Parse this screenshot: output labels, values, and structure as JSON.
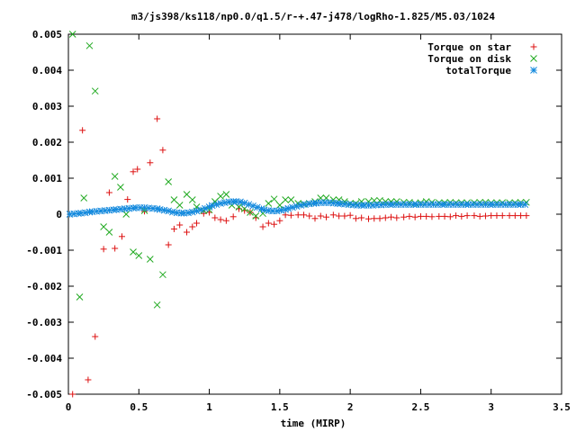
{
  "chart_data": {
    "type": "scatter",
    "title": "m3/js398/ks118/np0.0/q1.5/r-+.47-j478/logRho-1.825/M5.03/1024",
    "xlabel": "time (MIRP)",
    "ylabel": "",
    "xlim": [
      0,
      3.5
    ],
    "ylim": [
      -0.005,
      0.005
    ],
    "x_ticks": [
      "0",
      "0.5",
      "1",
      "1.5",
      "2",
      "2.5",
      "3",
      "3.5"
    ],
    "y_ticks": [
      "-0.005",
      "-0.004",
      "-0.003",
      "-0.002",
      "-0.001",
      "0",
      "0.001",
      "0.002",
      "0.003",
      "0.004",
      "0.005"
    ],
    "grid": false,
    "legend_position": "top-right",
    "colors": {
      "star": "#dd1111",
      "disk": "#22aa22",
      "total": "#1188dd",
      "axis": "#000000"
    },
    "series": [
      {
        "name": "Torque on star",
        "marker": "plus",
        "x": [
          0.03,
          0.1,
          0.14,
          0.19,
          0.25,
          0.29,
          0.33,
          0.38,
          0.42,
          0.46,
          0.49,
          0.54,
          0.58,
          0.63,
          0.67,
          0.71,
          0.75,
          0.79,
          0.84,
          0.88,
          0.91,
          0.96,
          1.0,
          1.04,
          1.08,
          1.12,
          1.17,
          1.21,
          1.25,
          1.29,
          1.33,
          1.38,
          1.42,
          1.46,
          1.5,
          1.54,
          1.58,
          1.63,
          1.67,
          1.71,
          1.75,
          1.79,
          1.83,
          1.88,
          1.92,
          1.96,
          2.0,
          2.04,
          2.08,
          2.13,
          2.17,
          2.21,
          2.25,
          2.29,
          2.33,
          2.38,
          2.42,
          2.46,
          2.5,
          2.54,
          2.58,
          2.63,
          2.67,
          2.71,
          2.75,
          2.79,
          2.83,
          2.88,
          2.92,
          2.96,
          3.0,
          3.04,
          3.08,
          3.13,
          3.17,
          3.21,
          3.25
        ],
        "y": [
          -0.005,
          0.00233,
          -0.0046,
          -0.0034,
          -0.00097,
          0.0006,
          -0.00095,
          -0.00062,
          0.00041,
          0.00118,
          0.00125,
          8e-05,
          0.00143,
          0.00265,
          0.00178,
          -0.00085,
          -0.00041,
          -0.0003,
          -0.0005,
          -0.00035,
          -0.00025,
          2e-05,
          5e-05,
          -0.0001,
          -0.00015,
          -0.00018,
          -7e-05,
          0.00015,
          0.0001,
          5e-05,
          -0.0001,
          -0.00035,
          -0.00025,
          -0.00028,
          -0.00018,
          -2e-05,
          -3e-05,
          -2e-05,
          -2e-05,
          -5e-05,
          -0.00012,
          -5e-05,
          -8e-05,
          -2e-05,
          -5e-05,
          -5e-05,
          -3e-05,
          -0.00012,
          -0.0001,
          -0.00013,
          -0.00012,
          -0.00012,
          -0.0001,
          -8e-05,
          -0.0001,
          -8e-05,
          -6e-05,
          -8e-05,
          -6e-05,
          -6e-05,
          -7e-05,
          -6e-05,
          -6e-05,
          -7e-05,
          -4e-05,
          -6e-05,
          -4e-05,
          -4e-05,
          -6e-05,
          -5e-05,
          -4e-05,
          -4e-05,
          -4e-05,
          -4e-05,
          -4e-05,
          -4e-05,
          -4e-05
        ]
      },
      {
        "name": "Torque on disk",
        "marker": "cross",
        "x": [
          0.03,
          0.08,
          0.11,
          0.15,
          0.19,
          0.25,
          0.29,
          0.33,
          0.37,
          0.41,
          0.46,
          0.5,
          0.54,
          0.58,
          0.63,
          0.67,
          0.71,
          0.75,
          0.79,
          0.84,
          0.88,
          0.91,
          0.96,
          1.0,
          1.04,
          1.08,
          1.12,
          1.16,
          1.21,
          1.25,
          1.29,
          1.33,
          1.38,
          1.42,
          1.46,
          1.5,
          1.54,
          1.58,
          1.63,
          1.67,
          1.71,
          1.75,
          1.79,
          1.83,
          1.88,
          1.92,
          1.96,
          2.0,
          2.04,
          2.08,
          2.13,
          2.17,
          2.21,
          2.25,
          2.29,
          2.33,
          2.38,
          2.42,
          2.46,
          2.5,
          2.54,
          2.58,
          2.63,
          2.67,
          2.71,
          2.75,
          2.79,
          2.83,
          2.88,
          2.92,
          2.96,
          3.0,
          3.04,
          3.08,
          3.13,
          3.17,
          3.21,
          3.25
        ],
        "y": [
          0.005,
          -0.0023,
          0.00045,
          0.00468,
          0.00342,
          -0.00035,
          -0.0005,
          0.00105,
          0.00075,
          0.0,
          -0.00105,
          -0.00115,
          0.0001,
          -0.00125,
          -0.00252,
          -0.00168,
          0.0009,
          0.0004,
          0.00025,
          0.00055,
          0.0004,
          0.0002,
          0.0001,
          0.00012,
          0.00035,
          0.0005,
          0.00055,
          0.00025,
          0.0002,
          0.00015,
          5e-05,
          -5e-05,
          2e-05,
          0.0003,
          0.00042,
          0.00025,
          0.0004,
          0.0004,
          0.0003,
          0.00028,
          0.0003,
          0.00035,
          0.00045,
          0.00045,
          0.0004,
          0.0004,
          0.00035,
          0.0003,
          0.0003,
          0.00035,
          0.00035,
          0.00038,
          0.00038,
          0.00035,
          0.00035,
          0.00035,
          0.00033,
          0.00033,
          0.0003,
          0.00032,
          0.00035,
          0.00033,
          0.00032,
          0.00032,
          0.00033,
          0.00032,
          0.00032,
          0.00032,
          0.00032,
          0.00033,
          0.00033,
          0.00032,
          0.00032,
          0.00032,
          0.00032,
          0.00032,
          0.00033,
          0.00033
        ]
      },
      {
        "name": "totalTorque",
        "marker": "star",
        "x": [
          0.01,
          0.04,
          0.07,
          0.09,
          0.12,
          0.15,
          0.17,
          0.2,
          0.23,
          0.26,
          0.29,
          0.32,
          0.34,
          0.37,
          0.4,
          0.43,
          0.46,
          0.48,
          0.51,
          0.54,
          0.57,
          0.6,
          0.63,
          0.65,
          0.68,
          0.71,
          0.74,
          0.77,
          0.8,
          0.82,
          0.85,
          0.88,
          0.91,
          0.94,
          0.97,
          1.0,
          1.02,
          1.05,
          1.08,
          1.11,
          1.14,
          1.17,
          1.19,
          1.22,
          1.25,
          1.28,
          1.31,
          1.34,
          1.37,
          1.39,
          1.42,
          1.45,
          1.48,
          1.51,
          1.54,
          1.56,
          1.59,
          1.62,
          1.65,
          1.68,
          1.71,
          1.74,
          1.76,
          1.79,
          1.82,
          1.85,
          1.88,
          1.91,
          1.93,
          1.96,
          1.99,
          2.02,
          2.05,
          2.08,
          2.1,
          2.13,
          2.16,
          2.19,
          2.22,
          2.25,
          2.28,
          2.3,
          2.33,
          2.36,
          2.39,
          2.42,
          2.45,
          2.47,
          2.5,
          2.53,
          2.56,
          2.59,
          2.62,
          2.65,
          2.67,
          2.7,
          2.73,
          2.76,
          2.79,
          2.82,
          2.84,
          2.87,
          2.9,
          2.93,
          2.96,
          2.99,
          3.01,
          3.04,
          3.07,
          3.1,
          3.13,
          3.16,
          3.19,
          3.21,
          3.24
        ],
        "y": [
          0.0,
          1e-05,
          2e-05,
          3e-05,
          4e-05,
          6e-05,
          7e-05,
          8e-05,
          9e-05,
          0.0001,
          0.00011,
          0.00012,
          0.00013,
          0.00014,
          0.00015,
          0.00016,
          0.00017,
          0.00018,
          0.00018,
          0.00018,
          0.00017,
          0.00016,
          0.00015,
          0.00013,
          0.00011,
          9e-05,
          6e-05,
          4e-05,
          3e-05,
          3e-05,
          4e-05,
          6e-05,
          9e-05,
          0.00012,
          0.00016,
          0.0002,
          0.00024,
          0.00027,
          0.0003,
          0.00032,
          0.00034,
          0.00035,
          0.00035,
          0.00034,
          0.00031,
          0.00027,
          0.00023,
          0.00019,
          0.00015,
          0.00012,
          0.0001,
          9e-05,
          9e-05,
          0.00011,
          0.00013,
          0.00016,
          0.00019,
          0.00022,
          0.00025,
          0.00027,
          0.00029,
          0.0003,
          0.00031,
          0.00032,
          0.00032,
          0.00032,
          0.00031,
          0.0003,
          0.00029,
          0.00028,
          0.00027,
          0.00026,
          0.00025,
          0.00025,
          0.00025,
          0.00025,
          0.00025,
          0.00026,
          0.00026,
          0.00027,
          0.00027,
          0.00027,
          0.00027,
          0.00027,
          0.00027,
          0.00027,
          0.00027,
          0.00027,
          0.00027,
          0.00027,
          0.00027,
          0.00027,
          0.00027,
          0.00027,
          0.00027,
          0.00027,
          0.00027,
          0.00027,
          0.00027,
          0.00027,
          0.00027,
          0.00027,
          0.00027,
          0.00027,
          0.00027,
          0.00027,
          0.00027,
          0.00027,
          0.00027,
          0.00027,
          0.00027,
          0.00027,
          0.00027,
          0.00027,
          0.00027
        ]
      }
    ]
  }
}
